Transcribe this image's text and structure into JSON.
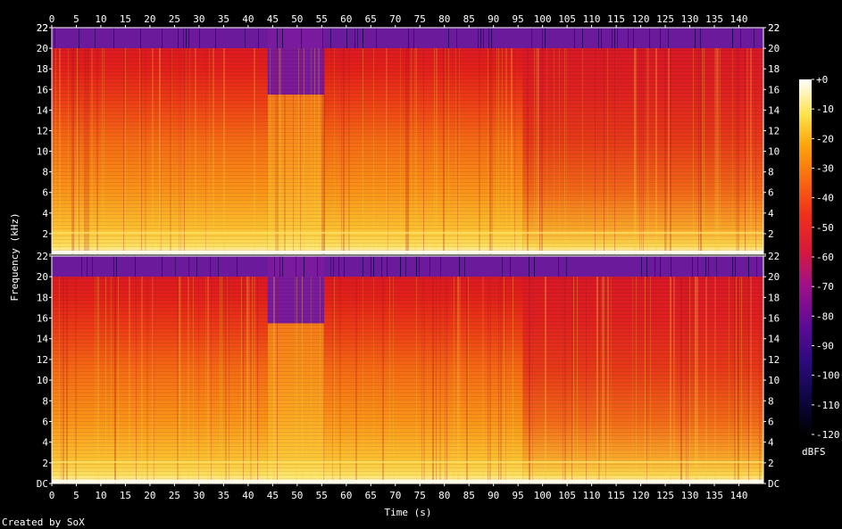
{
  "chart_data": {
    "type": "heatmap",
    "title": "",
    "xlabel": "Time (s)",
    "ylabel": "Frequency (kHz)",
    "credit": "Created by SoX",
    "x_ticks": [
      "0",
      "5",
      "10",
      "15",
      "20",
      "25",
      "30",
      "35",
      "40",
      "45",
      "50",
      "55",
      "60",
      "65",
      "70",
      "75",
      "80",
      "85",
      "90",
      "95",
      "100",
      "105",
      "110",
      "115",
      "120",
      "125",
      "130",
      "135",
      "140"
    ],
    "xlim": [
      0,
      145
    ],
    "y_ticks": [
      "DC",
      "2",
      "4",
      "6",
      "8",
      "10",
      "12",
      "14",
      "16",
      "18",
      "20",
      "22"
    ],
    "y_top_tick": "22",
    "ylim": [
      0,
      22
    ],
    "channels": 2,
    "colorbar": {
      "label": "dBFS",
      "ticks": [
        "+0",
        "-10",
        "-20",
        "-30",
        "-40",
        "-50",
        "-60",
        "-70",
        "-80",
        "-90",
        "-100",
        "-110",
        "-120"
      ],
      "range": [
        -120,
        0
      ]
    },
    "segments": [
      {
        "start": 0,
        "end": 44,
        "cutoff_khz": 20
      },
      {
        "start": 44,
        "end": 55.5,
        "cutoff_khz": 15.5
      },
      {
        "start": 55.5,
        "end": 96,
        "cutoff_khz": 20
      },
      {
        "start": 96,
        "end": 145,
        "cutoff_khz": 20
      }
    ]
  }
}
